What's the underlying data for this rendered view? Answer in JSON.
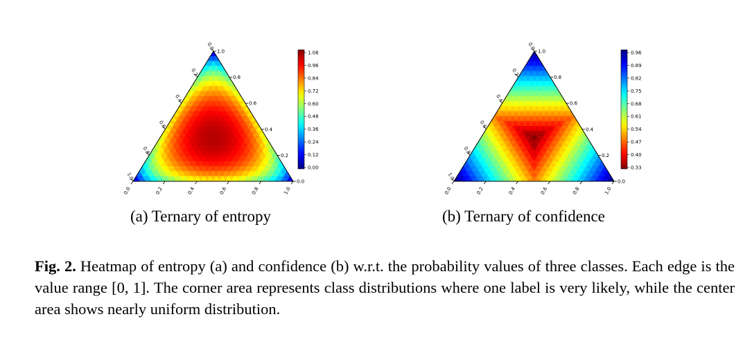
{
  "panels": [
    {
      "id": "a",
      "subcaption": "(a) Ternary of entropy",
      "colorbar": {
        "colormap": "jet",
        "reversed": false,
        "ticks": [
          "1.08",
          "0.96",
          "0.84",
          "0.72",
          "0.60",
          "0.48",
          "0.36",
          "0.24",
          "0.12",
          "0.00"
        ]
      },
      "bottom_ticks": [
        "0.0",
        "0.2",
        "0.4",
        "0.6",
        "0.8",
        "1.0"
      ],
      "right_ticks": [
        "1.0",
        "0.8",
        "0.6",
        "0.4",
        "0.2",
        "0.0"
      ],
      "left_ticks": [
        "0.0",
        "0.2",
        "0.4",
        "0.6",
        "0.8",
        "1.0"
      ]
    },
    {
      "id": "b",
      "subcaption": "(b) Ternary of confidence",
      "colorbar": {
        "colormap": "jet",
        "reversed": true,
        "ticks": [
          "0.96",
          "0.89",
          "0.82",
          "0.75",
          "0.68",
          "0.61",
          "0.54",
          "0.47",
          "0.40",
          "0.33"
        ]
      },
      "bottom_ticks": [
        "0.0",
        "0.2",
        "0.4",
        "0.6",
        "0.8",
        "1.0"
      ],
      "right_ticks": [
        "1.0",
        "0.8",
        "0.6",
        "0.4",
        "0.2",
        "0.0"
      ],
      "left_ticks": [
        "0.0",
        "0.2",
        "0.4",
        "0.6",
        "0.8",
        "1.0"
      ]
    }
  ],
  "caption": {
    "label": "Fig. 2.",
    "text": " Heatmap of entropy (a) and confidence (b) w.r.t. the probability values of three classes. Each edge is the value range [0, 1]. The corner area represents class distributions where one label is very likely, while the center area shows nearly uniform distribution."
  }
}
